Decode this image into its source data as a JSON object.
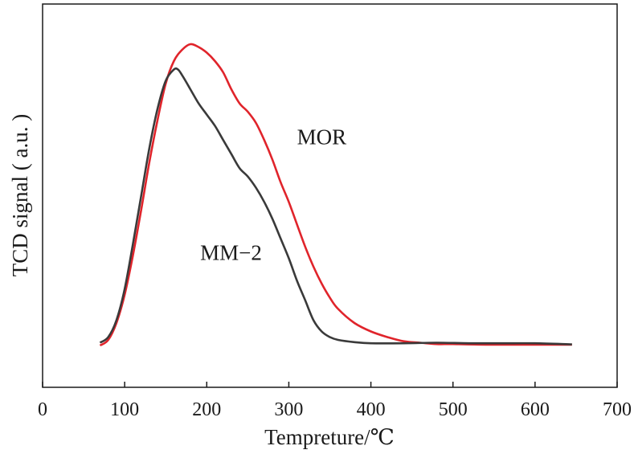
{
  "chart_data": {
    "type": "line",
    "title": "",
    "xlabel": "Tempreture/℃",
    "ylabel": "TCD signal ( a.u. )",
    "xlim": [
      0,
      700
    ],
    "ylim": [
      0,
      1.13
    ],
    "xticks": [
      0,
      100,
      200,
      300,
      400,
      500,
      600,
      700
    ],
    "yticks_shown": false,
    "grid": false,
    "legend": "none",
    "series": [
      {
        "name": "MOR",
        "color": "#e0242b",
        "x": [
          70,
          80,
          90,
          100,
          110,
          120,
          130,
          140,
          150,
          160,
          170,
          180,
          190,
          200,
          210,
          220,
          230,
          240,
          250,
          260,
          270,
          280,
          290,
          300,
          310,
          320,
          330,
          340,
          350,
          360,
          380,
          400,
          420,
          440,
          460,
          480,
          500,
          540,
          580,
          620,
          645
        ],
        "y": [
          0.0,
          0.02,
          0.08,
          0.18,
          0.32,
          0.48,
          0.65,
          0.8,
          0.93,
          1.01,
          1.05,
          1.07,
          1.06,
          1.04,
          1.01,
          0.97,
          0.91,
          0.86,
          0.83,
          0.79,
          0.73,
          0.66,
          0.58,
          0.51,
          0.43,
          0.35,
          0.28,
          0.22,
          0.17,
          0.13,
          0.08,
          0.05,
          0.03,
          0.015,
          0.01,
          0.005,
          0.005,
          0.003,
          0.003,
          0.003,
          0.003
        ]
      },
      {
        "name": "MM-2",
        "color": "#3a3a3a",
        "x": [
          70,
          80,
          90,
          100,
          110,
          120,
          130,
          140,
          150,
          160,
          165,
          170,
          180,
          190,
          200,
          210,
          220,
          230,
          240,
          250,
          260,
          270,
          280,
          290,
          300,
          310,
          320,
          330,
          340,
          350,
          360,
          380,
          400,
          440,
          480,
          520,
          560,
          600,
          645
        ],
        "y": [
          0.01,
          0.03,
          0.09,
          0.2,
          0.36,
          0.53,
          0.7,
          0.84,
          0.94,
          0.98,
          0.98,
          0.96,
          0.91,
          0.86,
          0.82,
          0.78,
          0.73,
          0.68,
          0.63,
          0.6,
          0.56,
          0.51,
          0.45,
          0.38,
          0.31,
          0.23,
          0.16,
          0.09,
          0.05,
          0.03,
          0.02,
          0.012,
          0.008,
          0.008,
          0.01,
          0.008,
          0.008,
          0.008,
          0.004
        ]
      }
    ],
    "annotations": [
      {
        "text": "MOR",
        "x": 310,
        "y": 0.74
      },
      {
        "text": "MM−2",
        "x": 192,
        "y": 0.33
      }
    ]
  }
}
